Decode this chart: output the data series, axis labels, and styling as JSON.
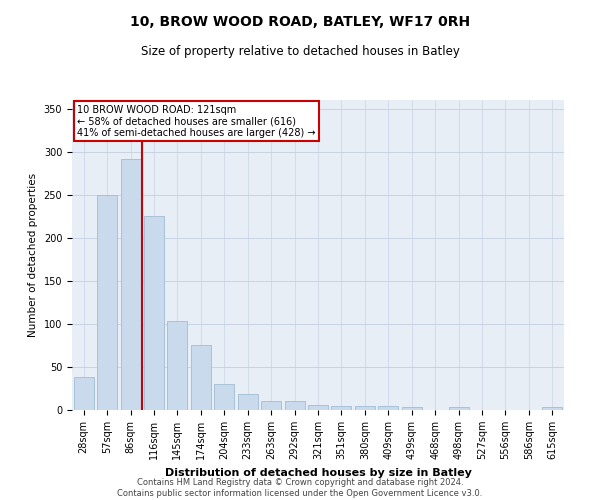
{
  "title": "10, BROW WOOD ROAD, BATLEY, WF17 0RH",
  "subtitle": "Size of property relative to detached houses in Batley",
  "xlabel": "Distribution of detached houses by size in Batley",
  "ylabel": "Number of detached properties",
  "footer_line1": "Contains HM Land Registry data © Crown copyright and database right 2024.",
  "footer_line2": "Contains public sector information licensed under the Open Government Licence v3.0.",
  "bar_color": "#c8daec",
  "bar_edge_color": "#a0bcd4",
  "grid_color": "#c8d4e4",
  "background_color": "#e8eef6",
  "property_line_color": "#cc0000",
  "annotation_box_color": "#cc0000",
  "categories": [
    "28sqm",
    "57sqm",
    "86sqm",
    "116sqm",
    "145sqm",
    "174sqm",
    "204sqm",
    "233sqm",
    "263sqm",
    "292sqm",
    "321sqm",
    "351sqm",
    "380sqm",
    "409sqm",
    "439sqm",
    "468sqm",
    "498sqm",
    "527sqm",
    "556sqm",
    "586sqm",
    "615sqm"
  ],
  "values": [
    38,
    250,
    292,
    225,
    103,
    76,
    30,
    19,
    10,
    10,
    6,
    5,
    5,
    5,
    4,
    0,
    4,
    0,
    0,
    0,
    3
  ],
  "property_label": "10 BROW WOOD ROAD: 121sqm",
  "annotation_line1": "← 58% of detached houses are smaller (616)",
  "annotation_line2": "41% of semi-detached houses are larger (428) →",
  "property_line_x": 2.5,
  "ylim": [
    0,
    360
  ],
  "yticks": [
    0,
    50,
    100,
    150,
    200,
    250,
    300,
    350
  ],
  "title_fontsize": 10,
  "subtitle_fontsize": 8.5,
  "xlabel_fontsize": 8,
  "ylabel_fontsize": 7.5,
  "tick_fontsize": 7,
  "annotation_fontsize": 7,
  "footer_fontsize": 6
}
